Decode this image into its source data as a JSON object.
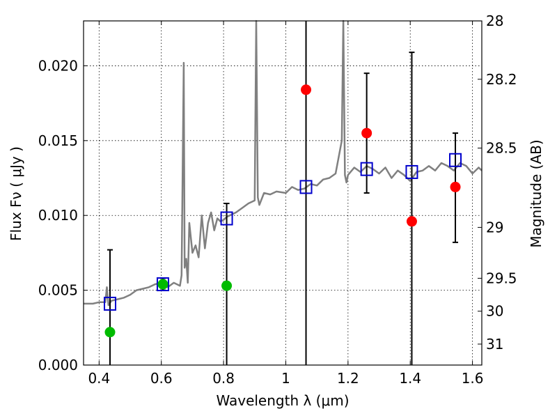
{
  "chart_data": {
    "type": "scatter",
    "xlabel": "Wavelength  λ (μm)",
    "ylabel": "Flux  Fν  ( μJy )",
    "y2label": "Magnitude (AB)",
    "xlim": [
      0.35,
      1.63
    ],
    "ylim": [
      0.0,
      0.023
    ],
    "grid": true,
    "x_ticks": [
      0.4,
      0.6,
      0.8,
      1.0,
      1.2,
      1.4,
      1.6
    ],
    "x_tick_labels": [
      "0.4",
      "0.6",
      "0.8",
      "1",
      "1.2",
      "1.4",
      "1.6"
    ],
    "y_ticks": [
      0.0,
      0.005,
      0.01,
      0.015,
      0.02
    ],
    "y_tick_labels": [
      "0.000",
      "0.005",
      "0.010",
      "0.015",
      "0.020"
    ],
    "y2_ticks": [
      {
        "label": "28",
        "flux": 0.023
      },
      {
        "label": "28.2",
        "flux": 0.0191
      },
      {
        "label": "28.5",
        "flux": 0.0145
      },
      {
        "label": "29",
        "flux": 0.0092
      },
      {
        "label": "29.5",
        "flux": 0.0058
      },
      {
        "label": "30",
        "flux": 0.0036
      },
      {
        "label": "31",
        "flux": 0.0014
      }
    ],
    "series": [
      {
        "style": "line",
        "color": "#808080",
        "x": [
          0.35,
          0.38,
          0.4,
          0.42,
          0.425,
          0.43,
          0.44,
          0.46,
          0.48,
          0.5,
          0.52,
          0.54,
          0.56,
          0.58,
          0.6,
          0.62,
          0.64,
          0.66,
          0.665,
          0.672,
          0.675,
          0.68,
          0.685,
          0.69,
          0.7,
          0.71,
          0.72,
          0.73,
          0.74,
          0.75,
          0.76,
          0.77,
          0.78,
          0.79,
          0.8,
          0.81,
          0.82,
          0.84,
          0.86,
          0.88,
          0.9,
          0.905,
          0.91,
          0.915,
          0.93,
          0.95,
          0.97,
          1.0,
          1.02,
          1.04,
          1.06,
          1.08,
          1.1,
          1.12,
          1.14,
          1.16,
          1.18,
          1.185,
          1.19,
          1.195,
          1.2,
          1.22,
          1.24,
          1.26,
          1.28,
          1.3,
          1.32,
          1.34,
          1.36,
          1.38,
          1.4,
          1.42,
          1.44,
          1.46,
          1.48,
          1.5,
          1.52,
          1.54,
          1.56,
          1.58,
          1.6,
          1.62,
          1.63
        ],
        "y": [
          0.0041,
          0.0041,
          0.0042,
          0.0042,
          0.0052,
          0.004,
          0.0043,
          0.0044,
          0.0045,
          0.0047,
          0.005,
          0.0051,
          0.0052,
          0.0054,
          0.0055,
          0.0052,
          0.0055,
          0.0053,
          0.006,
          0.0202,
          0.0065,
          0.0071,
          0.0055,
          0.0095,
          0.0075,
          0.008,
          0.0072,
          0.01,
          0.0078,
          0.0095,
          0.0102,
          0.009,
          0.0098,
          0.0096,
          0.0097,
          0.0099,
          0.01,
          0.0102,
          0.0105,
          0.0108,
          0.011,
          0.023,
          0.0112,
          0.0107,
          0.0115,
          0.0114,
          0.0116,
          0.0115,
          0.0119,
          0.0117,
          0.0118,
          0.0121,
          0.012,
          0.0124,
          0.0125,
          0.0128,
          0.015,
          0.023,
          0.0127,
          0.0122,
          0.0127,
          0.0132,
          0.0129,
          0.0133,
          0.0131,
          0.0128,
          0.0132,
          0.0125,
          0.013,
          0.0127,
          0.0123,
          0.0129,
          0.013,
          0.0133,
          0.013,
          0.0135,
          0.0133,
          0.013,
          0.0135,
          0.0133,
          0.0128,
          0.0132,
          0.013
        ]
      },
      {
        "style": "open-square",
        "color": "#0000cc",
        "x": [
          0.435,
          0.605,
          0.81,
          1.065,
          1.26,
          1.405,
          1.545
        ],
        "y": [
          0.0041,
          0.0054,
          0.0098,
          0.0119,
          0.0131,
          0.0129,
          0.0137
        ]
      },
      {
        "style": "dot",
        "color": "#00bb00",
        "x": [
          0.435,
          0.605,
          0.81
        ],
        "y": [
          0.0022,
          0.0054,
          0.0053
        ]
      },
      {
        "style": "dot",
        "color": "#ff0000",
        "x": [
          1.065,
          1.26,
          1.405,
          1.545
        ],
        "y": [
          0.0184,
          0.0155,
          0.0096,
          0.0119
        ]
      }
    ],
    "errorbars": [
      {
        "x": 0.435,
        "y": 0.0022,
        "low": 0.0,
        "high": 0.0077
      },
      {
        "x": 0.605,
        "y": 0.0054,
        "low": 0.005,
        "high": 0.0058
      },
      {
        "x": 0.81,
        "y": 0.0053,
        "low": 0.0,
        "high": 0.0108
      },
      {
        "x": 1.065,
        "y": 0.0184,
        "low": 0.0,
        "high": 0.023
      },
      {
        "x": 1.26,
        "y": 0.0155,
        "low": 0.0115,
        "high": 0.0195
      },
      {
        "x": 1.405,
        "y": 0.0096,
        "low": 0.0,
        "high": 0.0209
      },
      {
        "x": 1.545,
        "y": 0.0119,
        "low": 0.0082,
        "high": 0.0155
      }
    ]
  }
}
